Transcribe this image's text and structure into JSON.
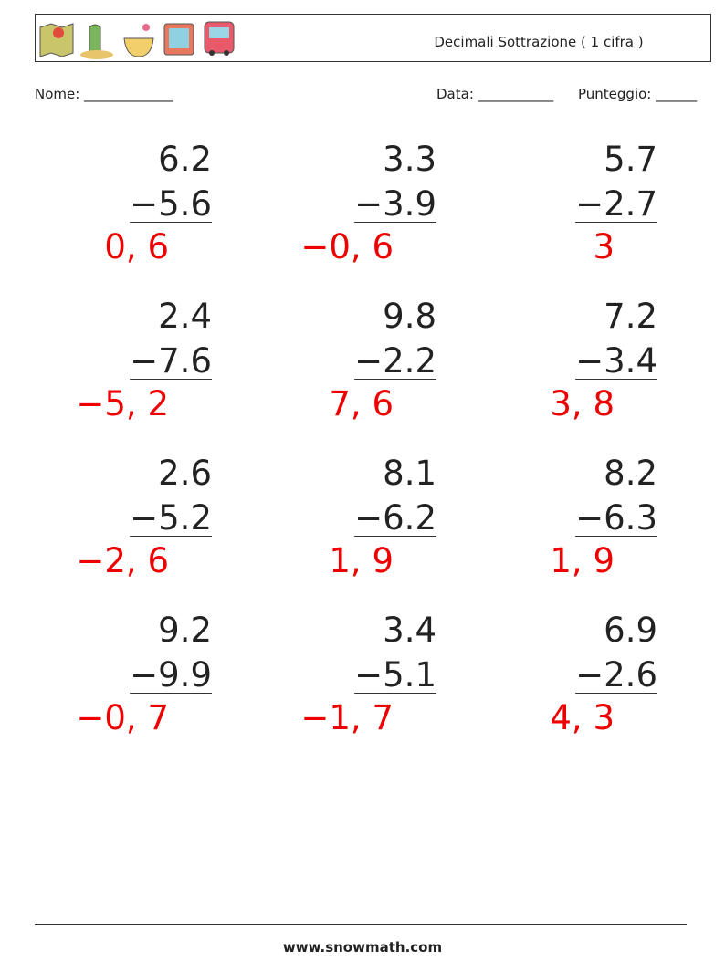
{
  "header": {
    "title": "Decimali Sottrazione ( 1 cifra )"
  },
  "fields": {
    "name": "Nome: _____________",
    "date": "Data: ___________",
    "score": "Punteggio: ______"
  },
  "problems": [
    {
      "top": "6.2",
      "bottom": "−5.6",
      "answer": "0, 6"
    },
    {
      "top": "3.3",
      "bottom": "−3.9",
      "answer": "−0, 6"
    },
    {
      "top": "5.7",
      "bottom": "−2.7",
      "answer": "3"
    },
    {
      "top": "2.4",
      "bottom": "−7.6",
      "answer": "−5, 2"
    },
    {
      "top": "9.8",
      "bottom": "−2.2",
      "answer": "7, 6"
    },
    {
      "top": "7.2",
      "bottom": "−3.4",
      "answer": "3, 8"
    },
    {
      "top": "2.6",
      "bottom": "−5.2",
      "answer": "−2, 6"
    },
    {
      "top": "8.1",
      "bottom": "−6.2",
      "answer": "1, 9"
    },
    {
      "top": "8.2",
      "bottom": "−6.3",
      "answer": "1, 9"
    },
    {
      "top": "9.2",
      "bottom": "−9.9",
      "answer": "−0, 7"
    },
    {
      "top": "3.4",
      "bottom": "−5.1",
      "answer": "−1, 7"
    },
    {
      "top": "6.9",
      "bottom": "−2.6",
      "answer": "4, 3"
    }
  ],
  "footer": {
    "url": "www.snowmath.com"
  }
}
